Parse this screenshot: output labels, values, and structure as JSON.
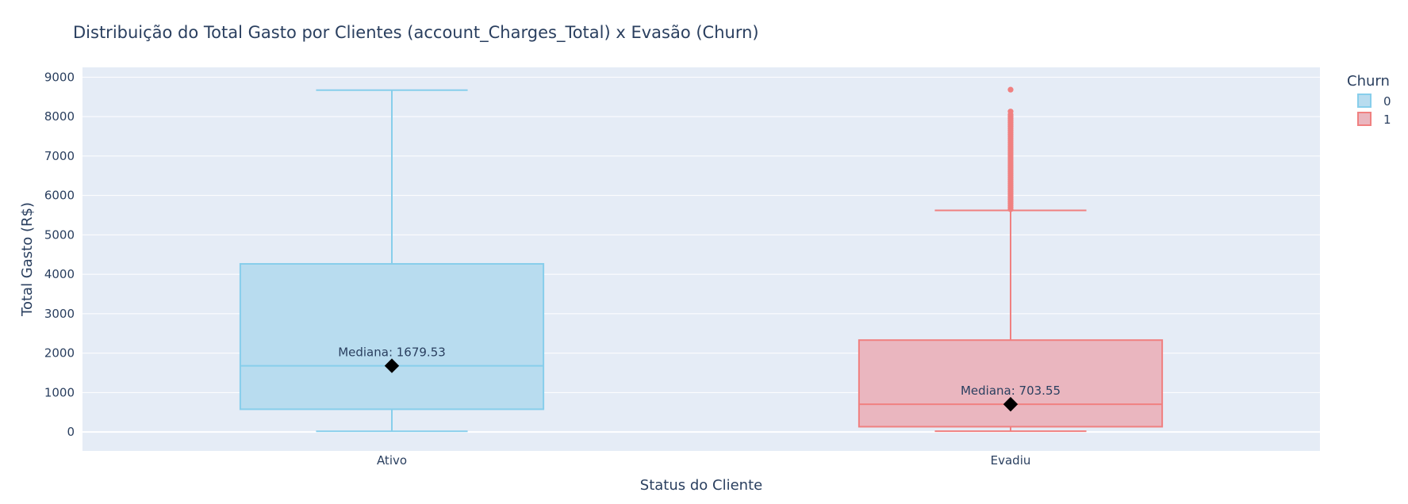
{
  "chart_data": {
    "type": "box",
    "title": "Distribuição do Total Gasto por Clientes (account_Charges_Total) x Evasão (Churn)",
    "xlabel": "Status do Cliente",
    "ylabel": "Total Gasto (R$)",
    "ylim": [
      -480,
      9250
    ],
    "yticks": [
      0,
      1000,
      2000,
      3000,
      4000,
      5000,
      6000,
      7000,
      8000,
      9000
    ],
    "categories": [
      "Ativo",
      "Evadiu"
    ],
    "legend": {
      "title": "Churn",
      "position": "top-right"
    },
    "grid": true,
    "series": [
      {
        "name": "0",
        "category": "Ativo",
        "color": "#87ceeb",
        "fill": "#b8dcef",
        "min": 18.8,
        "q1": 577,
        "median": 1679.53,
        "q3": 4265,
        "max": 8672,
        "outliers": []
      },
      {
        "name": "1",
        "category": "Evadiu",
        "color": "#f08080",
        "fill": "#eab6bf",
        "min": 18.85,
        "q1": 134,
        "median": 703.55,
        "q3": 2331,
        "max": 5621,
        "outliers": [
          5650,
          5700,
          5750,
          5800,
          5850,
          5900,
          5950,
          6000,
          6050,
          6100,
          6150,
          6200,
          6250,
          6300,
          6350,
          6400,
          6450,
          6500,
          6550,
          6600,
          6650,
          6700,
          6750,
          6800,
          6850,
          6900,
          6950,
          7000,
          7050,
          7100,
          7150,
          7200,
          7250,
          7300,
          7350,
          7400,
          7450,
          7500,
          7550,
          7600,
          7650,
          7700,
          7750,
          7800,
          7850,
          7900,
          7950,
          8000,
          8050,
          8130,
          8684
        ]
      }
    ],
    "annotations": [
      {
        "category": "Ativo",
        "y": 1679.53,
        "text": "Mediana: 1679.53"
      },
      {
        "category": "Evadiu",
        "y": 703.55,
        "text": "Mediana: 703.55"
      }
    ]
  }
}
